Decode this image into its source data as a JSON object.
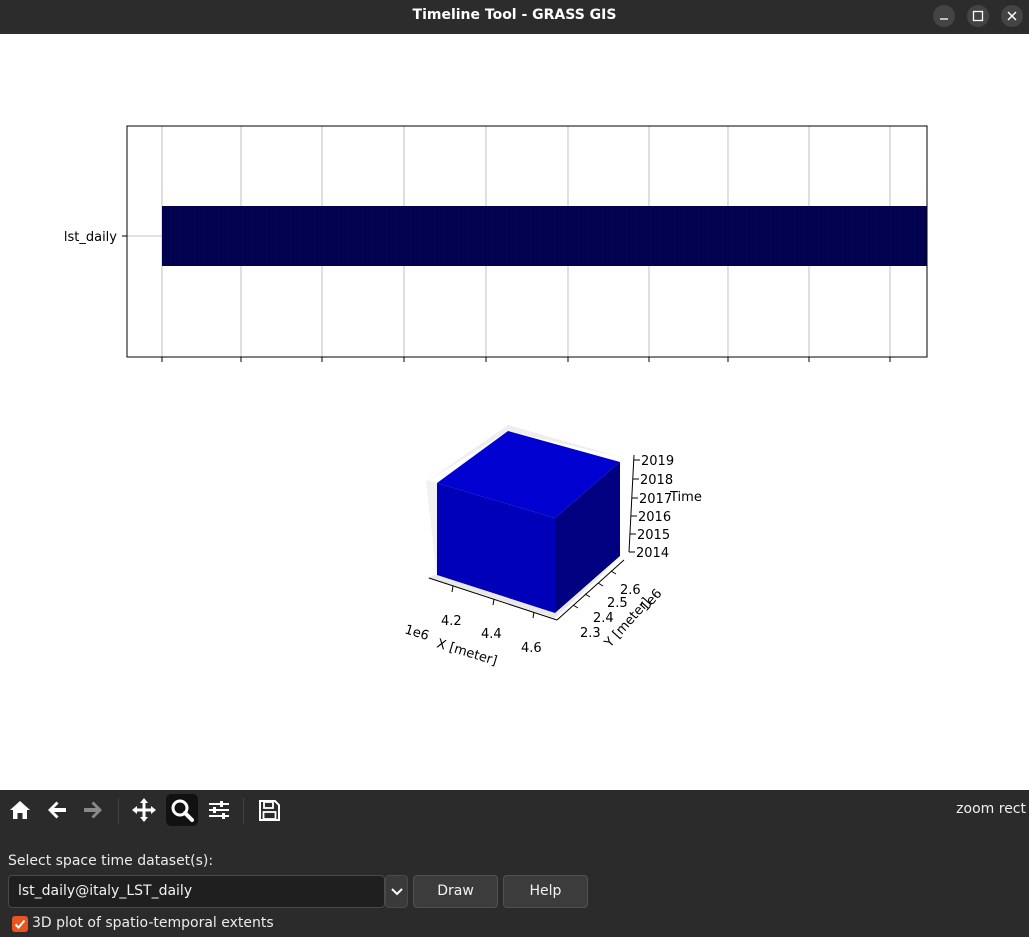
{
  "window": {
    "title": "Timeline Tool - GRASS GIS",
    "minimize_icon": "minimize-icon",
    "maximize_icon": "maximize-icon",
    "close_icon": "close-icon"
  },
  "timeline_plot": {
    "dataset_label": "lst_daily",
    "bar_color": "#00004b"
  },
  "cube_plot": {
    "face_colors": [
      "#0000d0",
      "#0000b8",
      "#000080"
    ],
    "x_axis": {
      "label": "X [meter]",
      "offset": "1e6",
      "ticks": [
        "4.2",
        "4.4",
        "4.6"
      ]
    },
    "y_axis": {
      "label": "Y [meter]",
      "offset": "1e6",
      "ticks": [
        "2.3",
        "2.4",
        "2.5",
        "2.6"
      ]
    },
    "z_axis": {
      "label": "Time",
      "ticks": [
        "2014",
        "2015",
        "2016",
        "2017",
        "2018",
        "2019"
      ]
    }
  },
  "toolbar": {
    "buttons": [
      {
        "name": "home-button",
        "icon": "home-icon"
      },
      {
        "name": "back-button",
        "icon": "arrow-left-icon"
      },
      {
        "name": "forward-button",
        "icon": "arrow-right-icon"
      },
      {
        "name": "pan-button",
        "icon": "move-icon"
      },
      {
        "name": "zoom-button",
        "icon": "magnifier-icon",
        "active": true
      },
      {
        "name": "configure-subplots-button",
        "icon": "sliders-icon"
      },
      {
        "name": "save-button",
        "icon": "floppy-icon"
      }
    ],
    "status": "zoom rect"
  },
  "panel": {
    "select_label": "Select space time dataset(s):",
    "dataset_value": "lst_daily@italy_LST_daily",
    "draw_label": "Draw",
    "help_label": "Help",
    "checkbox_label": "3D plot of spatio-temporal extents",
    "checkbox_checked": true,
    "accent_color": "#e95420"
  }
}
